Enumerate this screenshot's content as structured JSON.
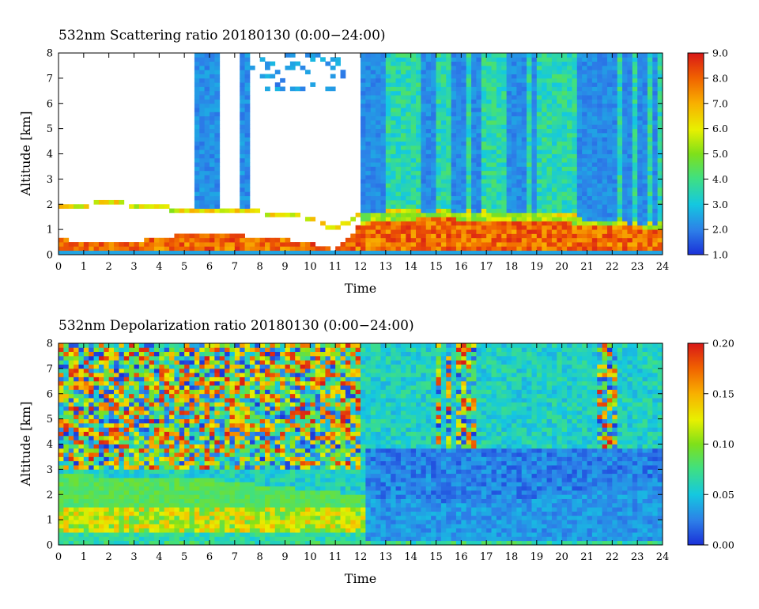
{
  "chart_data": [
    {
      "type": "heatmap",
      "title": "532nm Scattering ratio  20180130 (0:00−24:00)",
      "xlabel": "Time",
      "ylabel": "Altitude [km]",
      "xlim": [
        0,
        24
      ],
      "ylim": [
        0,
        8
      ],
      "x_ticks": [
        "0",
        "1",
        "2",
        "3",
        "4",
        "5",
        "6",
        "7",
        "8",
        "9",
        "10",
        "11",
        "12",
        "13",
        "14",
        "15",
        "16",
        "17",
        "18",
        "19",
        "20",
        "21",
        "22",
        "23",
        "24"
      ],
      "y_ticks": [
        "0",
        "1",
        "2",
        "3",
        "4",
        "5",
        "6",
        "7",
        "8"
      ],
      "colorbar": {
        "range": [
          1.0,
          9.0
        ],
        "tick_values": [
          1.0,
          2.0,
          3.0,
          4.0,
          5.0,
          6.0,
          7.0,
          8.0,
          9.0
        ],
        "tick_labels": [
          "1.0",
          "2.0",
          "3.0",
          "4.0",
          "5.0",
          "6.0",
          "7.0",
          "8.0",
          "9.0"
        ]
      },
      "features": {
        "boundary_layer_top_km": [
          [
            0,
            1.8
          ],
          [
            1,
            1.9
          ],
          [
            2,
            2.0
          ],
          [
            3,
            1.9
          ],
          [
            4,
            1.8
          ],
          [
            5,
            1.7
          ],
          [
            6,
            1.7
          ],
          [
            7,
            1.7
          ],
          [
            8,
            1.6
          ],
          [
            9,
            1.5
          ],
          [
            10,
            1.4
          ],
          [
            11,
            0.9
          ],
          [
            12,
            1.6
          ],
          [
            13,
            1.7
          ],
          [
            14,
            1.7
          ],
          [
            15,
            1.7
          ],
          [
            16,
            1.7
          ],
          [
            17,
            1.6
          ],
          [
            18,
            1.6
          ],
          [
            19,
            1.6
          ],
          [
            20,
            1.5
          ],
          [
            21,
            1.4
          ],
          [
            22,
            1.3
          ],
          [
            23,
            1.2
          ],
          [
            24,
            1.2
          ]
        ],
        "high_aerosol_top_km": [
          [
            0,
            0.6
          ],
          [
            2,
            0.5
          ],
          [
            3,
            0.5
          ],
          [
            4,
            0.7
          ],
          [
            5,
            0.8
          ],
          [
            6,
            0.8
          ],
          [
            7,
            0.8
          ],
          [
            8,
            0.7
          ],
          [
            9,
            0.6
          ],
          [
            10,
            0.5
          ],
          [
            11,
            0.2
          ],
          [
            12,
            1.2
          ],
          [
            13,
            1.4
          ],
          [
            14,
            1.4
          ],
          [
            15,
            1.5
          ],
          [
            16,
            1.4
          ],
          [
            17,
            1.3
          ],
          [
            18,
            1.4
          ],
          [
            19,
            1.4
          ],
          [
            20,
            1.3
          ],
          [
            21,
            1.2
          ],
          [
            22,
            1.2
          ],
          [
            23,
            1.1
          ],
          [
            24,
            1.0
          ]
        ],
        "cloud_free_window_h": [
          [
            0,
            12
          ]
        ],
        "aerosol_layer_above_pbl_h": [
          12.2,
          24
        ],
        "aerosol_layer_altitude_km": [
          1.6,
          8
        ],
        "aerosol_layer_value": 3.5,
        "cloud_streaks_h": [
          5.6,
          6.0,
          6.3,
          7.4,
          12.2,
          12.5,
          12.8,
          14.5,
          14.8,
          15.8,
          16.1,
          16.5,
          16.7,
          18.0,
          18.4,
          18.9,
          20.8,
          21.2,
          21.5,
          21.8,
          22.0,
          22.6,
          23.2,
          23.7
        ]
      }
    },
    {
      "type": "heatmap",
      "title": "532nm Depolarization ratio  20180130 (0:00−24:00)",
      "xlabel": "Time",
      "ylabel": "Altitude [km]",
      "xlim": [
        0,
        24
      ],
      "ylim": [
        0,
        8
      ],
      "x_ticks": [
        "0",
        "1",
        "2",
        "3",
        "4",
        "5",
        "6",
        "7",
        "8",
        "9",
        "10",
        "11",
        "12",
        "13",
        "14",
        "15",
        "16",
        "17",
        "18",
        "19",
        "20",
        "21",
        "22",
        "23",
        "24"
      ],
      "y_ticks": [
        "0",
        "1",
        "2",
        "3",
        "4",
        "5",
        "6",
        "7",
        "8"
      ],
      "colorbar": {
        "range": [
          0.0,
          0.2
        ],
        "tick_values": [
          0.0,
          0.05,
          0.1,
          0.15,
          0.2
        ],
        "tick_labels": [
          "0.00",
          "0.05",
          "0.10",
          "0.15",
          "0.20"
        ]
      },
      "features": {
        "noisy_upper_region_h": [
          0,
          12
        ],
        "noisy_upper_region_km": [
          3,
          8
        ],
        "low_layer_top_km": [
          [
            0,
            2.8
          ],
          [
            3,
            2.7
          ],
          [
            6,
            2.6
          ],
          [
            9,
            2.3
          ],
          [
            12,
            2.0
          ],
          [
            13,
            1.8
          ],
          [
            16,
            1.7
          ],
          [
            18,
            1.8
          ],
          [
            20,
            2.0
          ],
          [
            22,
            2.3
          ],
          [
            24,
            2.5
          ]
        ],
        "low_depol_band_h": [
          12.2,
          24
        ],
        "low_depol_band_km_top": 3.8,
        "near_surface_high_depol_km": [
          0.5,
          1.5
        ],
        "noisy_streaks_h": [
          5.7,
          6.2,
          8.6,
          9.2,
          10.5,
          11.3,
          15.1,
          15.5,
          16.0,
          16.4,
          21.6,
          21.8,
          22.0
        ]
      }
    }
  ]
}
